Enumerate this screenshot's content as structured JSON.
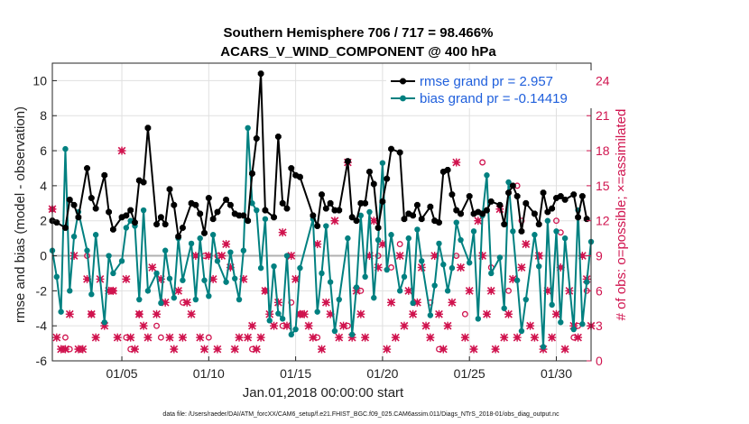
{
  "chart_data": {
    "type": "line",
    "title_line1": "Southern Hemisphere 706 / 717 = 98.466%",
    "title_line2": "ACARS_V_WIND_COMPONENT @ 400 hPa",
    "ylabel": "rmse and bias (model - observation)",
    "ylabel_right": "# of obs: o=possible; ×=assimilated",
    "xlabel": "Jan.01,2018 00:00:00 start",
    "footnote": "data file: /Users/raeder/DAI/ATM_forcXX/CAM6_setup/f.e21.FHIST_BGC.f09_025.CAM6assim.011/Diags_NTrS_2018-01/obs_diag_output.nc",
    "xlim": [
      1,
      32
    ],
    "ylim": [
      -6,
      11
    ],
    "ylim_right": [
      0,
      25.5
    ],
    "yticks": [
      -6,
      -4,
      -2,
      0,
      2,
      4,
      6,
      8,
      10
    ],
    "yticks_right": [
      0,
      3,
      6,
      9,
      12,
      15,
      18,
      21,
      24
    ],
    "xticks": [
      {
        "value": 5,
        "label": "01/05"
      },
      {
        "value": 10,
        "label": "01/10"
      },
      {
        "value": 15,
        "label": "01/15"
      },
      {
        "value": 20,
        "label": "01/20"
      },
      {
        "value": 25,
        "label": "01/25"
      },
      {
        "value": 30,
        "label": "01/30"
      }
    ],
    "legend": [
      {
        "label": "rmse grand pr = 2.957",
        "color": "#000000"
      },
      {
        "label": "bias grand pr = -0.14419",
        "color": "#008080"
      }
    ],
    "colors": {
      "rmse": "#000000",
      "bias": "#008080",
      "obs": "#d0144f",
      "zero": "#b0b0b0",
      "grid": "#e0e0e0"
    },
    "series": [
      {
        "name": "rmse",
        "x": [
          1.0,
          1.25,
          1.75,
          2.0,
          2.25,
          2.5,
          3.0,
          3.25,
          3.5,
          4.0,
          4.25,
          4.5,
          5.0,
          5.25,
          5.5,
          5.75,
          6.0,
          6.25,
          6.5,
          7.0,
          7.25,
          7.5,
          7.75,
          8.0,
          8.25,
          8.5,
          9.0,
          9.25,
          9.5,
          9.75,
          10.0,
          10.25,
          10.5,
          11.0,
          11.25,
          11.5,
          11.75,
          12.0,
          12.25,
          12.5,
          12.75,
          13.0,
          13.25,
          13.75,
          14.0,
          14.25,
          14.5,
          14.75,
          15.0,
          15.25,
          16.0,
          16.25,
          16.5,
          16.75,
          17.0,
          17.25,
          17.5,
          18.0,
          18.25,
          18.5,
          18.75,
          19.0,
          19.25,
          19.5,
          19.75,
          20.0,
          20.25,
          20.5,
          21.0,
          21.25,
          21.5,
          21.75,
          22.0,
          22.25,
          22.75,
          23.0,
          23.25,
          23.5,
          23.75,
          24.0,
          24.25,
          24.5,
          25.0,
          25.25,
          25.5,
          25.75,
          26.0,
          26.25,
          26.75,
          27.0,
          27.25,
          27.5,
          27.75,
          28.0,
          28.25,
          28.75,
          29.0,
          29.25,
          29.5,
          29.75,
          30.0,
          30.25,
          30.5,
          31.0,
          31.25,
          31.5,
          31.75
        ],
        "values": [
          2.0,
          1.9,
          1.6,
          3.2,
          2.9,
          2.2,
          5.0,
          3.3,
          2.7,
          4.6,
          2.5,
          1.5,
          2.2,
          2.3,
          2.6,
          1.9,
          4.3,
          4.2,
          7.3,
          1.8,
          2.2,
          1.8,
          3.8,
          2.9,
          1.1,
          1.6,
          3.0,
          2.9,
          2.4,
          1.3,
          3.3,
          2.1,
          2.5,
          3.2,
          2.9,
          2.4,
          2.3,
          2.3,
          2.0,
          4.7,
          6.7,
          10.4,
          2.6,
          2.2,
          6.8,
          3.0,
          2.7,
          5.0,
          4.6,
          4.5,
          2.3,
          1.7,
          3.5,
          2.7,
          3.0,
          2.6,
          2.6,
          5.4,
          2.2,
          2.0,
          3.0,
          3.0,
          4.8,
          4.1,
          1.6,
          3.1,
          4.4,
          6.1,
          5.9,
          2.1,
          2.4,
          2.3,
          2.9,
          2.1,
          2.8,
          2.0,
          1.9,
          4.8,
          4.9,
          3.5,
          2.6,
          2.4,
          3.4,
          2.4,
          2.5,
          2.4,
          2.6,
          3.1,
          2.9,
          1.8,
          3.6,
          4.0,
          3.4,
          1.4,
          3.0,
          2.4,
          1.8,
          3.6,
          2.5,
          2.7,
          3.3,
          3.4,
          3.2,
          3.5,
          2.2,
          3.4,
          2.1
        ]
      },
      {
        "name": "bias",
        "x": [
          1.0,
          1.25,
          1.5,
          1.75,
          2.0,
          2.25,
          2.5,
          3.0,
          3.25,
          3.5,
          4.0,
          4.25,
          4.5,
          5.0,
          5.25,
          5.5,
          5.75,
          6.0,
          6.25,
          6.5,
          7.0,
          7.25,
          7.5,
          7.75,
          8.0,
          8.25,
          8.5,
          9.0,
          9.25,
          9.5,
          9.75,
          10.0,
          10.25,
          10.5,
          11.0,
          11.25,
          11.5,
          11.75,
          12.0,
          12.25,
          12.5,
          12.75,
          13.0,
          13.25,
          13.5,
          13.75,
          14.0,
          14.25,
          14.5,
          14.75,
          15.0,
          15.25,
          16.0,
          16.25,
          16.5,
          16.75,
          17.0,
          17.25,
          17.5,
          18.0,
          18.25,
          18.5,
          18.75,
          19.0,
          19.25,
          19.5,
          19.75,
          20.0,
          20.25,
          20.5,
          21.0,
          21.25,
          21.5,
          21.75,
          22.0,
          22.25,
          22.75,
          23.0,
          23.25,
          23.5,
          23.75,
          24.0,
          24.25,
          24.5,
          25.0,
          25.25,
          25.5,
          25.75,
          26.0,
          26.25,
          26.75,
          27.0,
          27.25,
          27.5,
          27.75,
          28.0,
          28.25,
          28.75,
          29.0,
          29.25,
          29.5,
          29.75,
          30.0,
          30.25,
          30.5,
          31.0,
          31.25,
          31.5,
          31.75,
          32.0
        ],
        "values": [
          0.3,
          -1.2,
          -3.2,
          6.1,
          -2.0,
          1.1,
          2.5,
          0.3,
          -2.2,
          1.2,
          -3.8,
          0.0,
          -1.0,
          -0.3,
          1.6,
          2.0,
          1.7,
          -2.5,
          2.6,
          -2.0,
          -1.0,
          -2.7,
          0.3,
          -1.3,
          -2.4,
          1.0,
          -1.4,
          0.7,
          -2.5,
          1.0,
          -1.4,
          -2.3,
          1.2,
          -0.3,
          -1.5,
          0.2,
          -1.3,
          -2.5,
          0.3,
          7.3,
          3.0,
          2.6,
          -0.7,
          2.1,
          -3.7,
          -0.6,
          -3.3,
          -3.6,
          0.0,
          -4.5,
          -4.2,
          -0.7,
          2.1,
          -3.2,
          -1.0,
          1.7,
          -1.5,
          -4.3,
          -2.5,
          1.0,
          -4.5,
          -1.8,
          2.3,
          -1.2,
          2.5,
          -2.4,
          0.9,
          5.3,
          -0.8,
          1.2,
          -2.0,
          -1.2,
          1.0,
          -2.7,
          1.5,
          -0.3,
          -3.4,
          -1.7,
          0.7,
          -0.5,
          -2.0,
          -0.7,
          1.9,
          0.9,
          -0.4,
          1.4,
          -3.6,
          2.3,
          4.6,
          -1.0,
          -0.1,
          -3.0,
          4.2,
          1.4,
          -1.4,
          -4.3,
          -2.5,
          1.2,
          -0.6,
          -5.2,
          2.0,
          -2.8,
          1.4,
          -3.8,
          1.0,
          -4.2,
          2.6,
          -3.9,
          -1.5,
          0.8
        ]
      },
      {
        "name": "obs_assimilated",
        "x": [
          1.0,
          1.25,
          1.5,
          1.75,
          2.0,
          2.25,
          2.5,
          2.75,
          3.0,
          3.25,
          3.5,
          3.75,
          4.0,
          4.25,
          4.5,
          4.75,
          5.0,
          5.25,
          5.5,
          5.75,
          6.0,
          6.25,
          6.5,
          6.75,
          7.0,
          7.25,
          7.5,
          7.75,
          8.0,
          8.25,
          8.5,
          8.75,
          9.0,
          9.25,
          9.5,
          9.75,
          10.0,
          10.25,
          10.5,
          10.75,
          11.0,
          11.25,
          11.5,
          11.75,
          12.0,
          12.25,
          12.5,
          12.75,
          13.0,
          13.25,
          13.5,
          13.75,
          14.0,
          14.25,
          14.5,
          14.75,
          15.0,
          15.25,
          15.5,
          15.75,
          16.0,
          16.25,
          16.5,
          16.75,
          17.0,
          17.25,
          17.5,
          17.75,
          18.0,
          18.25,
          18.5,
          18.75,
          19.0,
          19.25,
          19.5,
          19.75,
          20.0,
          20.25,
          20.5,
          20.75,
          21.0,
          21.25,
          21.5,
          21.75,
          22.0,
          22.25,
          22.5,
          22.75,
          23.0,
          23.25,
          23.5,
          23.75,
          24.0,
          24.25,
          24.5,
          24.75,
          25.0,
          25.25,
          25.5,
          25.75,
          26.0,
          26.25,
          26.5,
          26.75,
          27.0,
          27.25,
          27.5,
          27.75,
          28.0,
          28.25,
          28.5,
          28.75,
          29.0,
          29.25,
          29.5,
          29.75,
          30.0,
          30.25,
          30.5,
          30.75,
          31.0,
          31.25,
          31.5,
          31.75,
          32.0
        ],
        "values": [
          13,
          2,
          1,
          1,
          4,
          9,
          1,
          1,
          7,
          4,
          2,
          7,
          3,
          6,
          6,
          2,
          18,
          7,
          2,
          1,
          4,
          3,
          2,
          8,
          4,
          7,
          5,
          2,
          1,
          6,
          2,
          5,
          4,
          9,
          2,
          1,
          9,
          7,
          1,
          9,
          10,
          8,
          1,
          2,
          7,
          2,
          3,
          1,
          2,
          6,
          4,
          3,
          5,
          11,
          3,
          9,
          7,
          4,
          4,
          3,
          2,
          10,
          1,
          5,
          4,
          12,
          2,
          3,
          17,
          2,
          6,
          4,
          2,
          9,
          12,
          8,
          10,
          1,
          5,
          2,
          9,
          3,
          6,
          4,
          5,
          8,
          3,
          2,
          9,
          4,
          1,
          3,
          5,
          17,
          8,
          2,
          6,
          1,
          12,
          9,
          4,
          6,
          1,
          13,
          2,
          4,
          7,
          2,
          8,
          10,
          3,
          2,
          9,
          1,
          6,
          2,
          4,
          8,
          1,
          6,
          3,
          2,
          9,
          7,
          3
        ]
      },
      {
        "name": "obs_possible",
        "x": [
          1.0,
          1.75,
          2.0,
          3.0,
          3.25,
          4.5,
          5.25,
          5.5,
          6.0,
          7.0,
          7.25,
          8.5,
          9.75,
          10.0,
          10.5,
          12.5,
          13.25,
          14.25,
          14.75,
          15.25,
          16.25,
          18.0,
          18.75,
          19.75,
          20.5,
          21.0,
          22.75,
          23.25,
          24.25,
          24.75,
          25.75,
          26.25,
          27.25,
          27.75,
          28.0,
          29.0,
          30.0,
          30.25,
          31.0,
          31.25,
          31.75
        ],
        "values": [
          13,
          2,
          1,
          9,
          4,
          6,
          2,
          1,
          4,
          3,
          2,
          5,
          9,
          2,
          9,
          1,
          6,
          3,
          5,
          4,
          2,
          3,
          6,
          9,
          8,
          10,
          5,
          1,
          9,
          4,
          17,
          8,
          6,
          15,
          12,
          9,
          12,
          11,
          2,
          3,
          6
        ]
      }
    ]
  }
}
